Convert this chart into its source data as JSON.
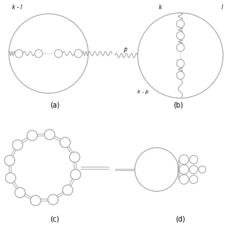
{
  "bg_color": "#ffffff",
  "lc": "#aaaaaa",
  "ec": "#aaaaaa",
  "fc": "#ffffff",
  "label_a": "(a)",
  "label_b": "(b)",
  "label_c": "(c)",
  "label_d": "(d)",
  "text_kl": "k - l",
  "text_k_b": "k",
  "text_l_b": "l",
  "text_p": "p",
  "text_kp": "k - p"
}
